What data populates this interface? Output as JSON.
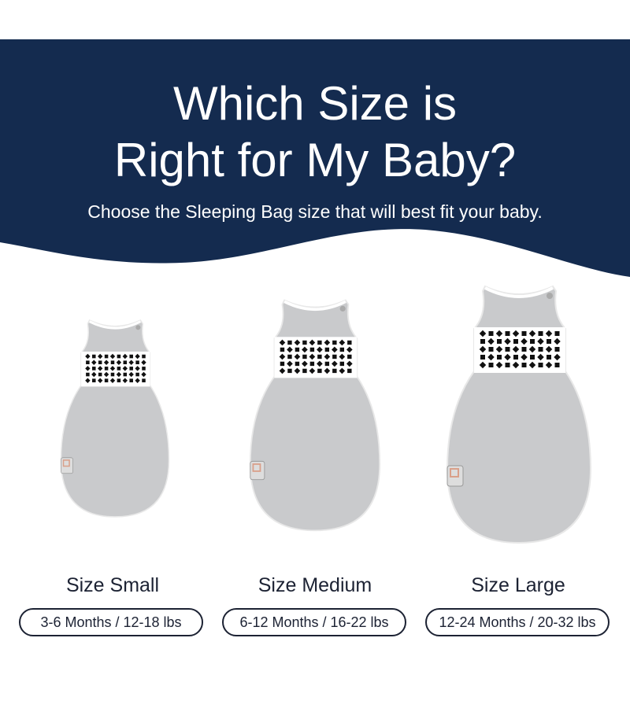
{
  "header": {
    "title_line1": "Which Size is",
    "title_line2": "Right for My Baby?",
    "subtitle": "Choose the Sleeping Bag size that will best fit your baby.",
    "background_color": "#142b4f"
  },
  "sizes": [
    {
      "label": "Size Small",
      "range": "3-6 Months / 12-18 lbs"
    },
    {
      "label": "Size Medium",
      "range": "6-12 Months / 16-22 lbs"
    },
    {
      "label": "Size Large",
      "range": "12-24 Months / 20-32 lbs"
    }
  ],
  "product": {
    "body_color": "#c9cacc",
    "band_pattern_color": "#111111",
    "band_color": "#ffffff"
  }
}
